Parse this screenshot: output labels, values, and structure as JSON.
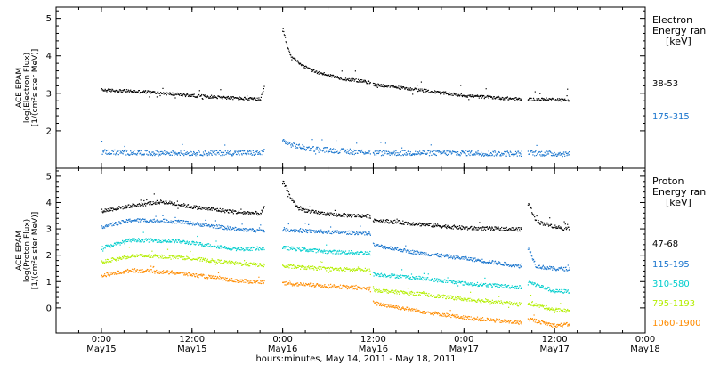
{
  "chart_data": [
    {
      "type": "scatter",
      "panel": "electron",
      "ylabel_lines": [
        "ACE EPAM",
        "log(Electron Flux)",
        "[1/(cm²s ster MeV)]"
      ],
      "yticks": [
        "2",
        "3",
        "4",
        "5"
      ],
      "ylim": [
        1.0,
        5.3
      ],
      "legend_title": [
        "Electron",
        "Energy ran",
        "[keV]"
      ],
      "series": [
        {
          "name": "38-53",
          "color": "#000000",
          "points": [
            [
              0,
              3.1
            ],
            [
              6,
              3.05
            ],
            [
              12,
              2.95
            ],
            [
              18,
              2.88
            ],
            [
              21,
              2.85
            ],
            [
              24.0,
              4.7
            ],
            [
              24.5,
              4.3
            ],
            [
              25,
              4.0
            ],
            [
              26,
              3.85
            ],
            [
              27,
              3.7
            ],
            [
              28,
              3.6
            ],
            [
              30,
              3.5
            ],
            [
              32,
              3.4
            ],
            [
              34,
              3.35
            ],
            [
              35.5,
              3.3
            ],
            [
              36,
              3.25
            ],
            [
              40,
              3.15
            ],
            [
              44,
              3.05
            ],
            [
              48,
              2.95
            ],
            [
              52,
              2.9
            ],
            [
              55.5,
              2.85
            ],
            [
              56.5,
              2.85
            ],
            [
              60,
              2.85
            ],
            [
              62,
              2.83
            ]
          ]
        },
        {
          "name": "175-315",
          "color": "#1874cd",
          "points": [
            [
              0,
              1.45
            ],
            [
              6,
              1.42
            ],
            [
              12,
              1.42
            ],
            [
              18,
              1.42
            ],
            [
              21,
              1.42
            ],
            [
              24.0,
              1.75
            ],
            [
              25,
              1.65
            ],
            [
              27,
              1.55
            ],
            [
              30,
              1.5
            ],
            [
              33,
              1.45
            ],
            [
              35.5,
              1.45
            ],
            [
              36,
              1.42
            ],
            [
              42,
              1.42
            ],
            [
              48,
              1.42
            ],
            [
              55.5,
              1.4
            ],
            [
              56.5,
              1.42
            ],
            [
              60,
              1.4
            ],
            [
              62,
              1.4
            ]
          ]
        }
      ]
    },
    {
      "type": "scatter",
      "panel": "proton",
      "ylabel_lines": [
        "ACE EPAM",
        "log(Proton Flux)",
        "[1/(cm²s ster MeV)]"
      ],
      "yticks": [
        "0",
        "1",
        "2",
        "3",
        "4",
        "5"
      ],
      "ylim": [
        -0.95,
        5.3
      ],
      "legend_title": [
        "Proton",
        "Energy ran",
        "[keV]"
      ],
      "series": [
        {
          "name": "47-68",
          "color": "#000000",
          "points": [
            [
              0,
              3.7
            ],
            [
              4,
              3.9
            ],
            [
              8,
              4.05
            ],
            [
              12,
              3.85
            ],
            [
              18,
              3.65
            ],
            [
              21,
              3.6
            ],
            [
              24.0,
              4.8
            ],
            [
              25,
              4.2
            ],
            [
              26,
              3.8
            ],
            [
              28,
              3.65
            ],
            [
              31,
              3.55
            ],
            [
              35.5,
              3.5
            ],
            [
              36,
              3.35
            ],
            [
              42,
              3.2
            ],
            [
              48,
              3.05
            ],
            [
              55.5,
              3.0
            ],
            [
              56.5,
              4.0
            ],
            [
              57.5,
              3.3
            ],
            [
              60,
              3.1
            ],
            [
              62,
              3.0
            ]
          ]
        },
        {
          "name": "115-195",
          "color": "#1874cd",
          "points": [
            [
              0,
              3.1
            ],
            [
              4,
              3.35
            ],
            [
              10,
              3.3
            ],
            [
              18,
              3.0
            ],
            [
              21,
              2.95
            ],
            [
              24.0,
              3.0
            ],
            [
              26,
              2.95
            ],
            [
              30,
              2.9
            ],
            [
              35.5,
              2.85
            ],
            [
              36,
              2.4
            ],
            [
              42,
              2.1
            ],
            [
              48,
              1.9
            ],
            [
              55.5,
              1.6
            ],
            [
              56.5,
              2.3
            ],
            [
              57.5,
              1.6
            ],
            [
              60,
              1.5
            ],
            [
              62,
              1.5
            ]
          ]
        },
        {
          "name": "310-580",
          "color": "#00cdcd",
          "points": [
            [
              0,
              2.3
            ],
            [
              4,
              2.6
            ],
            [
              10,
              2.55
            ],
            [
              18,
              2.25
            ],
            [
              24.0,
              2.3
            ],
            [
              30,
              2.15
            ],
            [
              35.5,
              2.1
            ],
            [
              36,
              1.3
            ],
            [
              42,
              1.15
            ],
            [
              48,
              0.95
            ],
            [
              55.5,
              0.8
            ],
            [
              56.5,
              1.0
            ],
            [
              60,
              0.65
            ],
            [
              62,
              0.65
            ]
          ]
        },
        {
          "name": "795-1193",
          "color": "#b3ee00",
          "points": [
            [
              0,
              1.75
            ],
            [
              4,
              2.0
            ],
            [
              10,
              1.95
            ],
            [
              18,
              1.7
            ],
            [
              24.0,
              1.6
            ],
            [
              30,
              1.5
            ],
            [
              35.5,
              1.45
            ],
            [
              36,
              0.7
            ],
            [
              42,
              0.55
            ],
            [
              48,
              0.35
            ],
            [
              55.5,
              0.15
            ],
            [
              56.5,
              0.2
            ],
            [
              60,
              -0.05
            ],
            [
              62,
              -0.1
            ]
          ]
        },
        {
          "name": "1060-1900",
          "color": "#ff8c00",
          "points": [
            [
              0,
              1.25
            ],
            [
              4,
              1.45
            ],
            [
              10,
              1.35
            ],
            [
              18,
              1.05
            ],
            [
              24.0,
              0.95
            ],
            [
              30,
              0.85
            ],
            [
              35.5,
              0.75
            ],
            [
              36,
              0.2
            ],
            [
              42,
              -0.1
            ],
            [
              48,
              -0.35
            ],
            [
              55.5,
              -0.55
            ],
            [
              56.5,
              -0.4
            ],
            [
              60,
              -0.65
            ],
            [
              62,
              -0.6
            ]
          ]
        }
      ]
    }
  ],
  "x_axis": {
    "xlim": [
      -6,
      72
    ],
    "ticks": [
      {
        "x": 0,
        "time": "0:00",
        "date": "May15"
      },
      {
        "x": 12,
        "time": "12:00",
        "date": "May15"
      },
      {
        "x": 24,
        "time": "0:00",
        "date": "May16"
      },
      {
        "x": 36,
        "time": "12:00",
        "date": "May16"
      },
      {
        "x": 48,
        "time": "0:00",
        "date": "May17"
      },
      {
        "x": 60,
        "time": "12:00",
        "date": "May17"
      },
      {
        "x": 72,
        "time": "0:00",
        "date": "May18"
      }
    ],
    "title": "hours:minutes, May 14, 2011 - May 18, 2011"
  }
}
